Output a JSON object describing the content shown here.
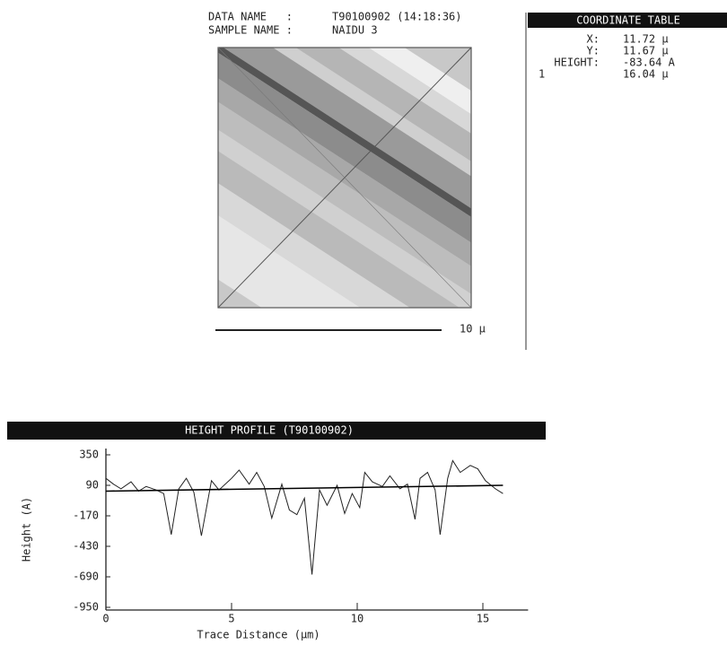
{
  "header": {
    "data_name_label": "DATA NAME   :",
    "data_name": "T90100902 (14:18:36)",
    "sample_name_label": "SAMPLE NAME :",
    "sample_name": "NAIDU 3",
    "scale_bar": "10 μ"
  },
  "coordinate_table": {
    "title": "COORDINATE TABLE",
    "rows": [
      {
        "label": "X:",
        "value": "11.72 μ"
      },
      {
        "label": "Y:",
        "value": "11.67 μ"
      },
      {
        "label": "HEIGHT:",
        "value": "-83.64 A"
      },
      {
        "label": "1",
        "value": "16.04 μ"
      }
    ]
  },
  "chart_data": {
    "type": "line",
    "title": "HEIGHT PROFILE (T90100902)",
    "x_label": "Trace Distance (μm)",
    "y_label": "Height (A)",
    "xlim": [
      0,
      16.8
    ],
    "ylim": [
      -950,
      350
    ],
    "xticks": [
      0,
      5,
      10,
      15
    ],
    "yticks": [
      350,
      90,
      -170,
      -430,
      -690,
      -950
    ],
    "series": [
      {
        "color": "#222222",
        "x": [
          0,
          0.3,
          0.6,
          1,
          1.3,
          1.6,
          2,
          2.3,
          2.6,
          2.9,
          3.2,
          3.5,
          3.8,
          4.2,
          4.5,
          5,
          5.3,
          5.7,
          6,
          6.3,
          6.6,
          7,
          7.3,
          7.6,
          7.9,
          8.2,
          8.5,
          8.8,
          9.2,
          9.5,
          9.8,
          10.1,
          10.3,
          10.6,
          11,
          11.3,
          11.7,
          12,
          12.3,
          12.5,
          12.8,
          13.1,
          13.3,
          13.6,
          13.8,
          14.1,
          14.5,
          14.8,
          15.1,
          15.5,
          15.8
        ],
        "values": [
          150,
          100,
          60,
          120,
          40,
          80,
          50,
          20,
          -330,
          60,
          150,
          30,
          -340,
          130,
          50,
          150,
          220,
          100,
          200,
          80,
          -190,
          100,
          -120,
          -160,
          -20,
          -670,
          50,
          -80,
          90,
          -150,
          20,
          -100,
          200,
          120,
          80,
          170,
          60,
          100,
          -200,
          150,
          200,
          50,
          -330,
          150,
          300,
          200,
          260,
          230,
          130,
          60,
          20
        ]
      },
      {
        "color": "#000000",
        "x": [
          0,
          15.8
        ],
        "values": [
          40,
          90
        ]
      }
    ]
  }
}
